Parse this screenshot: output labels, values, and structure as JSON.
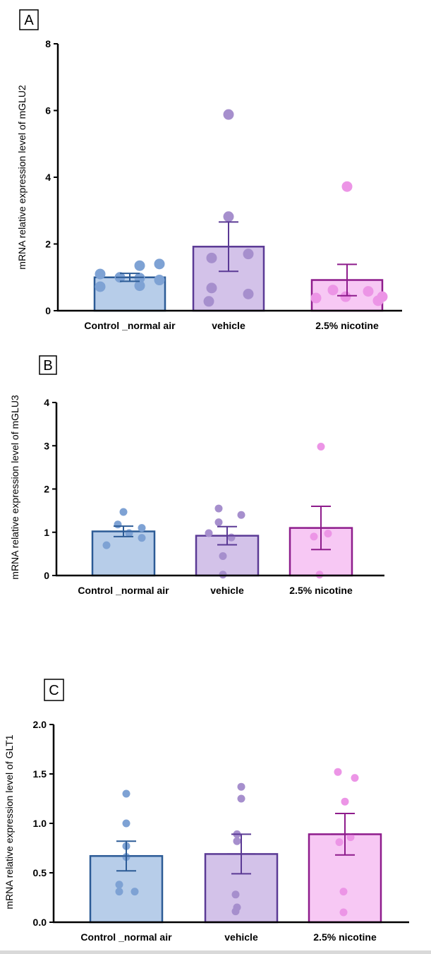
{
  "chart_data": [
    {
      "type": "bar",
      "panel_label": "A",
      "ylabel": "mRNA relative expression level of mGLU2",
      "categories": [
        "Control _normal air",
        "vehicle",
        "2.5% nicotine"
      ],
      "ylim": [
        0,
        8
      ],
      "yticks": [
        "0",
        "2",
        "4",
        "6",
        "8"
      ],
      "tick_values": [
        0,
        2,
        4,
        6,
        8
      ],
      "means": [
        1.0,
        1.92,
        0.92
      ],
      "sem": [
        0.12,
        0.74,
        0.47
      ],
      "points": [
        [
          1.1,
          0.72,
          1.0,
          0.98,
          1.35,
          0.75,
          1.4,
          0.92
        ],
        [
          5.88,
          2.82,
          1.58,
          1.7,
          0.68,
          0.5,
          0.28
        ],
        [
          3.72,
          0.38,
          0.62,
          0.42,
          0.58,
          0.3,
          0.42
        ]
      ]
    },
    {
      "type": "bar",
      "panel_label": "B",
      "ylabel": "mRNA relative expression level of mGLU3",
      "categories": [
        "Control _normal air",
        "vehicle",
        "2.5% nicotine"
      ],
      "ylim": [
        0,
        4
      ],
      "yticks": [
        "0",
        "1",
        "2",
        "3",
        "4"
      ],
      "tick_values": [
        0,
        1,
        2,
        3,
        4
      ],
      "means": [
        1.02,
        0.92,
        1.1
      ],
      "sem": [
        0.12,
        0.21,
        0.5
      ],
      "points": [
        [
          1.47,
          1.18,
          1.1,
          0.98,
          0.7,
          0.87
        ],
        [
          1.55,
          1.4,
          1.23,
          0.98,
          0.88,
          0.45,
          0.02
        ],
        [
          2.98,
          0.97,
          0.9,
          0.02
        ]
      ]
    },
    {
      "type": "bar",
      "panel_label": "C",
      "ylabel": "mRNA relative expression level of GLT1",
      "categories": [
        "Control _normal air",
        "vehicle",
        "2.5% nicotine"
      ],
      "ylim": [
        0,
        2
      ],
      "yticks": [
        "0.0",
        "0.5",
        "1.0",
        "1.5",
        "2.0"
      ],
      "tick_values": [
        0,
        0.5,
        1,
        1.5,
        2
      ],
      "means": [
        0.67,
        0.69,
        0.89
      ],
      "sem": [
        0.15,
        0.2,
        0.21
      ],
      "points": [
        [
          1.3,
          1.0,
          0.77,
          0.66,
          0.38,
          0.31,
          0.31
        ],
        [
          1.37,
          1.25,
          0.89,
          0.82,
          0.28,
          0.15,
          0.11
        ],
        [
          1.52,
          1.46,
          1.22,
          0.86,
          0.81,
          0.31,
          0.1
        ]
      ]
    }
  ],
  "colors": {
    "fills": [
      "#b7cde9",
      "#d3c2e9",
      "#f7c8f4"
    ],
    "strokes": [
      "#2c5b96",
      "#5b3a95",
      "#8e1c8c"
    ],
    "dots": [
      "#7ea2d4",
      "#a68fcd",
      "#ec95e6"
    ]
  }
}
